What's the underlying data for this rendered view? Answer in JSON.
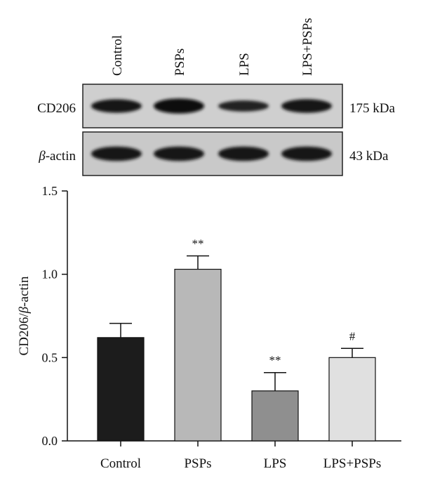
{
  "blot": {
    "lanes": [
      "Control",
      "PSPs",
      "LPS",
      "LPS+PSPs"
    ],
    "rows": [
      {
        "label": "CD206",
        "italic_prefix": "",
        "mw": "175 kDa",
        "band_intensity": [
          0.8,
          0.95,
          0.55,
          0.82
        ]
      },
      {
        "label": "-actin",
        "italic_prefix": "β",
        "mw": "43 kDa",
        "band_intensity": [
          0.9,
          0.9,
          0.9,
          0.9
        ]
      }
    ]
  },
  "chart_data": {
    "type": "bar",
    "categories": [
      "Control",
      "PSPs",
      "LPS",
      "LPS+PSPs"
    ],
    "values": [
      0.62,
      1.03,
      0.3,
      0.5
    ],
    "errors": [
      0.085,
      0.08,
      0.11,
      0.055
    ],
    "annotations": [
      "",
      "**",
      "**",
      "#"
    ],
    "bar_colors": [
      "#1c1c1c",
      "#b8b8b8",
      "#8f8f8f",
      "#e0e0e0"
    ],
    "ylabel_prefix": "CD206/",
    "ylabel_italic": "β",
    "ylabel_suffix": "-actin",
    "ylim": [
      0,
      1.5
    ],
    "yticks": [
      "0.0",
      "0.5",
      "1.0",
      "1.5"
    ],
    "ytick_values": [
      0,
      0.5,
      1.0,
      1.5
    ],
    "grid": false
  }
}
